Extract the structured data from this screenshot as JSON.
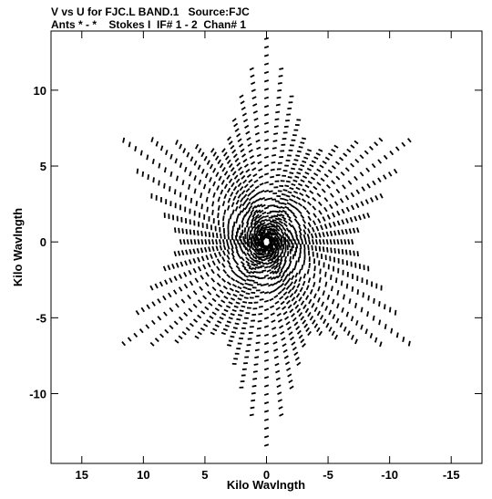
{
  "chart_data": {
    "type": "scatter",
    "title_line_1": "V vs U for FJC.L BAND.1   Source:FJC",
    "title_line_2": "Ants * - *    Stokes I  IF# 1 - 2  Chan# 1",
    "xlabel": "Kilo Wavlngth",
    "ylabel": "Kilo Wavlngth",
    "xlim": [
      17.5,
      -17.5
    ],
    "ylim": [
      -14.6,
      13.9
    ],
    "x_ticks": [
      15,
      10,
      5,
      0,
      -5,
      -10,
      -15
    ],
    "y_ticks": [
      10,
      5,
      0,
      -5,
      -10
    ],
    "grid": false,
    "pattern": {
      "description_free": true,
      "arms": 6,
      "arm_angle_offset_deg": 0,
      "center_to_vertex": 13.4,
      "star_inner_ratio": 0.52,
      "radial_samples": 24,
      "angular_samples_per_sector": 5,
      "dash_length": 0.35
    },
    "series": [
      {
        "points_summary": "uv coverage dashes, symmetric about origin",
        "color": "#000000"
      }
    ]
  }
}
